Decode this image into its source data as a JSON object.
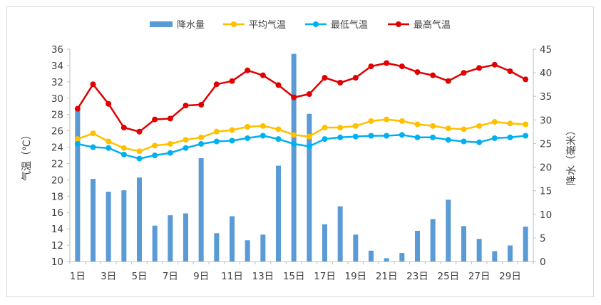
{
  "chart_data": {
    "type": "bar+line",
    "title": "",
    "categories": [
      "1日",
      "2日",
      "3日",
      "4日",
      "5日",
      "6日",
      "7日",
      "8日",
      "9日",
      "10日",
      "11日",
      "12日",
      "13日",
      "14日",
      "15日",
      "16日",
      "17日",
      "18日",
      "19日",
      "20日",
      "21日",
      "22日",
      "23日",
      "24日",
      "25日",
      "26日",
      "27日",
      "28日",
      "29日",
      "30日"
    ],
    "x_tick_labels": [
      "1日",
      "3日",
      "5日",
      "7日",
      "9日",
      "11日",
      "13日",
      "15日",
      "17日",
      "19日",
      "21日",
      "23日",
      "25日",
      "27日",
      "29日"
    ],
    "left_axis": {
      "label": "气温（℃）",
      "min": 10,
      "max": 36,
      "step": 2
    },
    "right_axis": {
      "label": "降水（毫米）",
      "min": 0,
      "max": 45,
      "step": 5
    },
    "series": [
      {
        "name": "降水量",
        "kind": "bar",
        "axis": "right",
        "color": "#5b9bd5",
        "values": [
          32,
          17.5,
          14.8,
          15.1,
          17.8,
          7.6,
          9.8,
          10.2,
          21.9,
          6,
          9.6,
          4.5,
          5.7,
          20.3,
          44,
          31.3,
          7.9,
          11.7,
          5.7,
          2.3,
          0.7,
          1.8,
          6.5,
          9,
          13.1,
          7.5,
          4.8,
          2.2,
          3.4,
          7.4
        ]
      },
      {
        "name": "平均气温",
        "kind": "line",
        "axis": "left",
        "color": "#ffc000",
        "values": [
          25,
          25.7,
          24.7,
          23.9,
          23.5,
          24.2,
          24.4,
          24.9,
          25.2,
          25.9,
          26.1,
          26.5,
          26.6,
          26.2,
          25.5,
          25.3,
          26.4,
          26.4,
          26.6,
          27.2,
          27.4,
          27.2,
          26.8,
          26.6,
          26.3,
          26.2,
          26.6,
          27.1,
          26.9,
          26.8
        ]
      },
      {
        "name": "最低气温",
        "kind": "line",
        "axis": "left",
        "color": "#00b0f0",
        "values": [
          24.4,
          24,
          23.9,
          23.1,
          22.6,
          23,
          23.3,
          23.9,
          24.4,
          24.7,
          24.8,
          25.1,
          25.4,
          25,
          24.4,
          24.1,
          25,
          25.2,
          25.3,
          25.4,
          25.4,
          25.5,
          25.2,
          25.2,
          24.9,
          24.7,
          24.6,
          25.1,
          25.2,
          25.4
        ]
      },
      {
        "name": "最高气温",
        "kind": "line",
        "axis": "left",
        "color": "#e00000",
        "values": [
          28.7,
          31.7,
          29.3,
          26.4,
          25.9,
          27.4,
          27.5,
          29.1,
          29.2,
          31.7,
          32.1,
          33.4,
          32.8,
          31.6,
          30.1,
          30.5,
          32.5,
          31.9,
          32.5,
          33.9,
          34.3,
          33.9,
          33.2,
          32.8,
          32.1,
          33.1,
          33.7,
          34.1,
          33.3,
          32.3
        ]
      }
    ],
    "legend_position": "top-center",
    "grid": false
  }
}
